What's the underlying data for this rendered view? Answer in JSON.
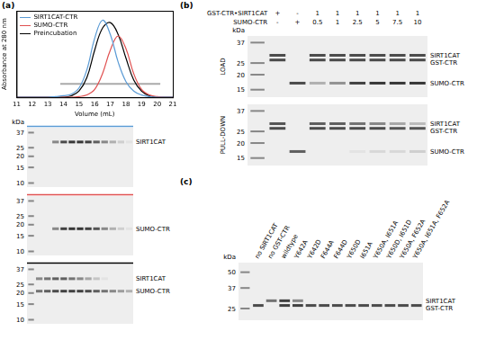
{
  "chart_data": {
    "type": "line",
    "panel": "(a)",
    "x_label": "Volume (mL)",
    "y_label": "Absorbance at 280 nm",
    "x": [
      11,
      11.5,
      12,
      12.5,
      13,
      13.5,
      14,
      14.5,
      15,
      15.5,
      16,
      16.5,
      17,
      17.5,
      18,
      18.5,
      19,
      19.5,
      20,
      20.5,
      21
    ],
    "series": [
      {
        "name": "SIRT1CAT-CTR",
        "color": "#5b9bd5",
        "values": [
          0,
          0,
          0,
          0,
          0,
          0.01,
          0.02,
          0.04,
          0.12,
          0.35,
          0.75,
          0.98,
          0.8,
          0.45,
          0.2,
          0.08,
          0.03,
          0.01,
          0,
          0,
          0
        ]
      },
      {
        "name": "SUMO-CTR",
        "color": "#e05050",
        "values": [
          0,
          0,
          0,
          0,
          0,
          0,
          0,
          0,
          0.01,
          0.03,
          0.1,
          0.3,
          0.6,
          0.78,
          0.62,
          0.3,
          0.1,
          0.03,
          0.01,
          0,
          0
        ]
      },
      {
        "name": "Preincubation",
        "color": "#000000",
        "values": [
          0,
          0,
          0,
          0,
          0,
          0,
          0,
          0.02,
          0.08,
          0.25,
          0.6,
          0.88,
          0.95,
          0.8,
          0.5,
          0.22,
          0.08,
          0.02,
          0,
          0,
          0
        ]
      }
    ],
    "xlim": [
      11,
      21
    ],
    "xticks": [
      11,
      12,
      13,
      14,
      15,
      16,
      17,
      18,
      19,
      20,
      21
    ],
    "ylim": [
      0,
      1.1
    ],
    "tick_labels": "x",
    "grid": false,
    "legend": "upper left",
    "fractions": {
      "x": [
        13.8,
        20.2
      ],
      "y": 0.17,
      "color": "#aaaaaa"
    }
  },
  "gels_a": {
    "unit": "kDa",
    "markers": [
      37,
      25,
      20,
      15,
      10
    ],
    "kda_range": [
      9,
      42
    ],
    "gels": [
      {
        "color": "#5b9bd5",
        "bands": [
          {
            "label": "SIRT1CAT",
            "kda": 29,
            "intensity": [
              0,
              0,
              0.5,
              0.8,
              0.9,
              0.9,
              0.85,
              0.7,
              0.5,
              0.3,
              0.15,
              0.05
            ]
          }
        ]
      },
      {
        "color": "#e05050",
        "bands": [
          {
            "label": "SUMO-CTR",
            "kda": 18,
            "intensity": [
              0,
              0,
              0.5,
              0.85,
              0.9,
              0.9,
              0.85,
              0.75,
              0.5,
              0.3,
              0.15,
              0.05
            ]
          }
        ]
      },
      {
        "color": "#000000",
        "bands": [
          {
            "label": "SIRT1CAT",
            "kda": 29,
            "intensity": [
              0.5,
              0.6,
              0.7,
              0.7,
              0.6,
              0.5,
              0.35,
              0.2,
              0.05,
              0,
              0,
              0
            ]
          },
          {
            "label": "SUMO-CTR",
            "kda": 21,
            "intensity": [
              0.6,
              0.7,
              0.8,
              0.85,
              0.85,
              0.85,
              0.8,
              0.7,
              0.6,
              0.5,
              0.4,
              0.3
            ]
          }
        ]
      }
    ]
  },
  "panel_b": {
    "panel": "(b)",
    "unit": "kDa",
    "header": [
      {
        "label": "GST-CTR•SIRT1CAT",
        "values": [
          "+",
          "-",
          "1",
          "1",
          "1",
          "1",
          "1",
          "1"
        ]
      },
      {
        "label": "SUMO-CTR",
        "values": [
          "-",
          "+",
          "0.5",
          "1",
          "2.5",
          "5",
          "7.5",
          "10"
        ]
      }
    ],
    "markers": [
      37,
      25,
      20,
      15
    ],
    "kda_range": [
      13,
      42
    ],
    "gels": [
      {
        "label": "LOAD",
        "bands": [
          {
            "label": "SIRT1CAT",
            "kda": 29,
            "intensity": [
              0.8,
              0,
              0.8,
              0.8,
              0.8,
              0.8,
              0.8,
              0.8
            ]
          },
          {
            "label": "GST-CTR",
            "kda": 26.5,
            "intensity": [
              0.8,
              0,
              0.8,
              0.8,
              0.8,
              0.8,
              0.8,
              0.8
            ]
          },
          {
            "label": "SUMO-CTR",
            "kda": 17,
            "intensity": [
              0,
              0.8,
              0.3,
              0.45,
              0.85,
              0.9,
              0.9,
              0.9
            ]
          }
        ]
      },
      {
        "label": "PULL-DOWN",
        "bands": [
          {
            "label": "SIRT1CAT",
            "kda": 29,
            "intensity": [
              0.75,
              0,
              0.7,
              0.7,
              0.6,
              0.5,
              0.35,
              0.25
            ]
          },
          {
            "label": "GST-CTR",
            "kda": 26.5,
            "intensity": [
              0.8,
              0,
              0.8,
              0.8,
              0.8,
              0.8,
              0.75,
              0.75
            ]
          },
          {
            "label": "SUMO-CTR",
            "kda": 17,
            "intensity": [
              0,
              0.7,
              0,
              0,
              0.05,
              0.1,
              0.1,
              0.15
            ]
          }
        ]
      }
    ]
  },
  "panel_c": {
    "panel": "(c)",
    "unit": "kDa",
    "lanes": [
      "no SIRT1CAT",
      "no GST-CTR",
      "wildtype",
      "Y642A",
      "Y642D",
      "F644A",
      "F644D",
      "Y650D",
      "I651A",
      "Y650A, I651A",
      "Y650D, I651D",
      "Y650A, F652A",
      "Y650A, I651A, F652A"
    ],
    "markers": [
      50,
      37,
      25
    ],
    "kda_range": [
      20,
      60
    ],
    "bands": [
      {
        "label": "SIRT1CAT",
        "kda": 29,
        "intensity": [
          0,
          0.6,
          0.85,
          0.5,
          0,
          0,
          0,
          0,
          0,
          0,
          0,
          0,
          0
        ]
      },
      {
        "label": "GST-CTR",
        "kda": 26.5,
        "intensity": [
          0.8,
          0,
          0.85,
          0.85,
          0.8,
          0.8,
          0.8,
          0.8,
          0.8,
          0.8,
          0.8,
          0.8,
          0.8
        ]
      }
    ]
  }
}
